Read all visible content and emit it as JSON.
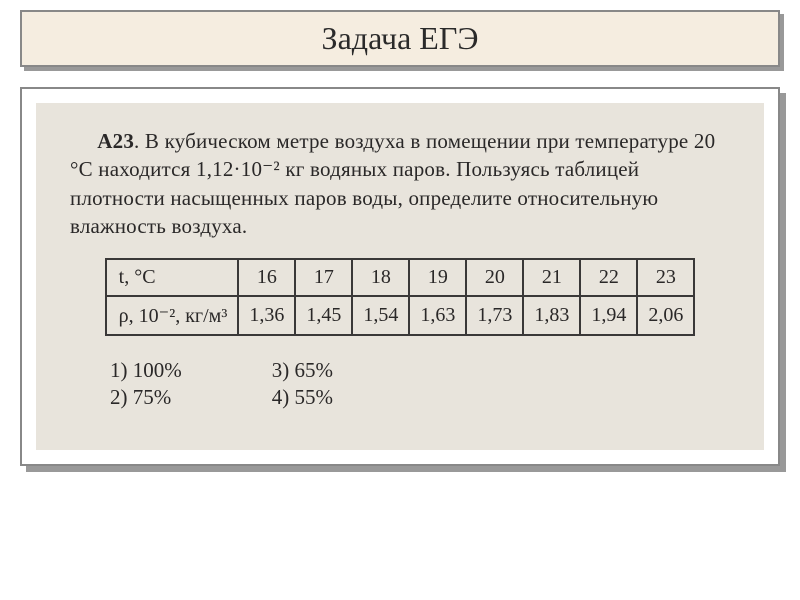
{
  "header": {
    "title": "Задача ЕГЭ"
  },
  "problem": {
    "label": "А23",
    "text": ". В кубическом метре воздуха в помещении при температуре 20 °С находится 1,12·10⁻² кг водяных паров. Пользуясь таблицей плотности насыщенных паров воды, определите относительную влажность воздуха."
  },
  "table": {
    "row1_label": "t, °С",
    "row2_label": "ρ, 10⁻², кг/м³",
    "columns": [
      "16",
      "17",
      "18",
      "19",
      "20",
      "21",
      "22",
      "23"
    ],
    "values": [
      "1,36",
      "1,45",
      "1,54",
      "1,63",
      "1,73",
      "1,83",
      "1,94",
      "2,06"
    ],
    "border_color": "#3a3838",
    "cell_bg": "#e8e4dc"
  },
  "answers": {
    "col1": [
      "1) 100%",
      "2) 75%"
    ],
    "col2": [
      "3) 65%",
      "4) 55%"
    ]
  },
  "styling": {
    "title_bg": "#f5ede0",
    "title_fontsize": 32,
    "scan_bg": "#e8e4dc",
    "body_fontsize": 21,
    "shadow_color": "#999999",
    "border_color": "#888888",
    "text_color": "#2a2828"
  }
}
